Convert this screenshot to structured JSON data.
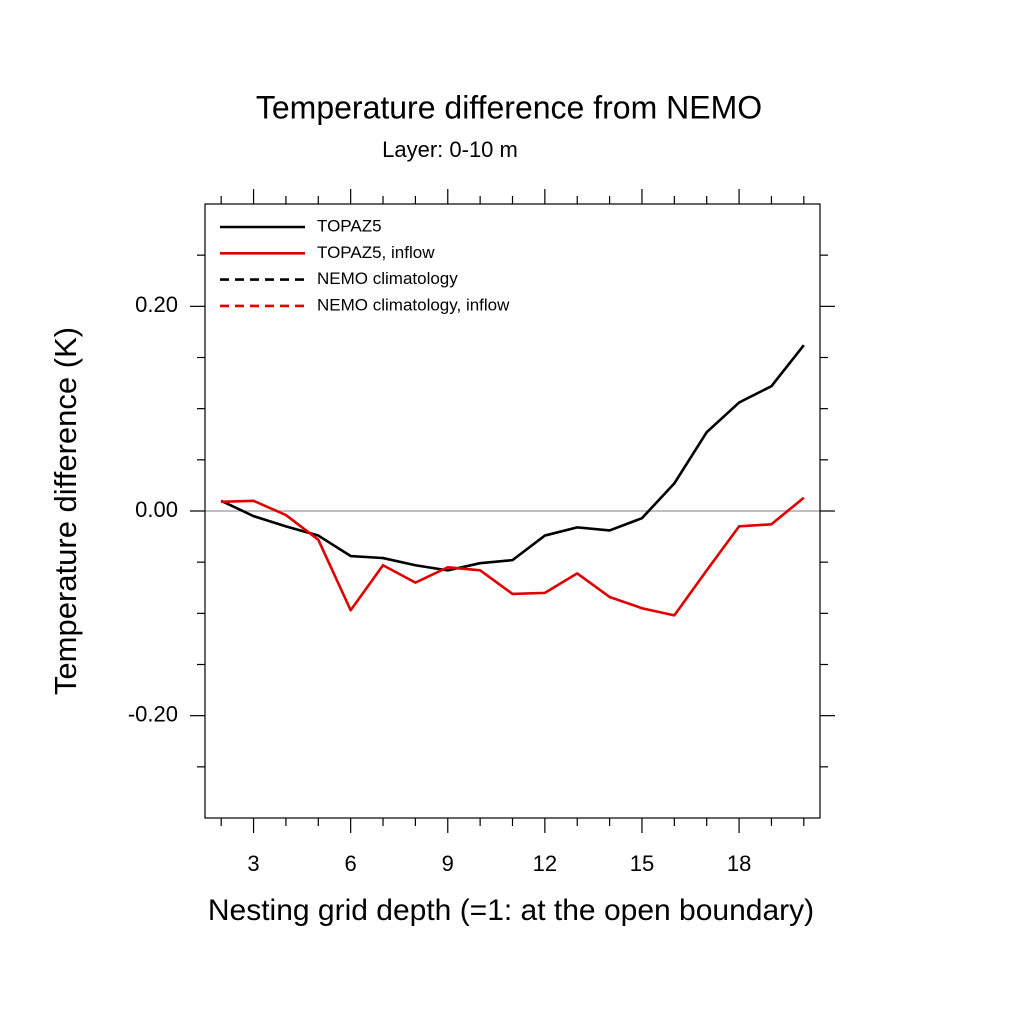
{
  "chart_data": {
    "type": "line",
    "title": "Temperature difference from NEMO",
    "subtitle": "Layer: 0-10 m",
    "x_label": "Nesting grid depth (=1: at the open boundary)",
    "y_label": "Temperature difference (K)",
    "x": [
      2,
      3,
      4,
      5,
      6,
      7,
      8,
      9,
      10,
      11,
      12,
      13,
      14,
      15,
      16,
      17,
      18,
      19,
      20
    ],
    "series": [
      {
        "name": "TOPAZ5",
        "color": "#000000",
        "dashed": false,
        "values": [
          0.01,
          -0.005,
          -0.015,
          -0.024,
          -0.044,
          -0.046,
          -0.053,
          -0.058,
          -0.051,
          -0.048,
          -0.024,
          -0.016,
          -0.019,
          -0.007,
          0.027,
          0.077,
          0.106,
          0.122,
          0.162
        ]
      },
      {
        "name": "TOPAZ5, inflow",
        "color": "#e00000",
        "dashed": false,
        "values": [
          0.009,
          0.01,
          -0.004,
          -0.028,
          -0.097,
          -0.053,
          -0.07,
          -0.055,
          -0.058,
          -0.081,
          -0.08,
          -0.061,
          -0.084,
          -0.095,
          -0.102,
          -0.058,
          -0.015,
          -0.013,
          0.013
        ]
      },
      {
        "name": "NEMO climatology",
        "color": "#000000",
        "dashed": true,
        "values": [
          null,
          null,
          null,
          null,
          null,
          null,
          null,
          null,
          null,
          null,
          null,
          null,
          null,
          null,
          null,
          null,
          null,
          null,
          null
        ]
      },
      {
        "name": "NEMO climatology, inflow",
        "color": "#e00000",
        "dashed": true,
        "values": [
          null,
          null,
          null,
          null,
          null,
          null,
          null,
          null,
          null,
          null,
          null,
          null,
          null,
          null,
          null,
          null,
          null,
          null,
          null
        ]
      }
    ],
    "xlim": [
      1.5,
      20.5
    ],
    "xticks": [
      3,
      6,
      9,
      12,
      15,
      18
    ],
    "xminor": [
      2,
      4,
      5,
      7,
      8,
      10,
      11,
      13,
      14,
      16,
      17,
      19,
      20
    ],
    "ylim": [
      -0.3,
      0.3
    ],
    "yticks": [
      {
        "value": -0.2,
        "label": "-0.20"
      },
      {
        "value": 0,
        "label": "0.00"
      },
      {
        "value": 0.2,
        "label": "0.20"
      }
    ],
    "yminor": [
      -0.25,
      -0.15,
      -0.1,
      -0.05,
      0.05,
      0.1,
      0.15,
      0.25
    ],
    "reference_line": 0,
    "legend": "upper left"
  }
}
